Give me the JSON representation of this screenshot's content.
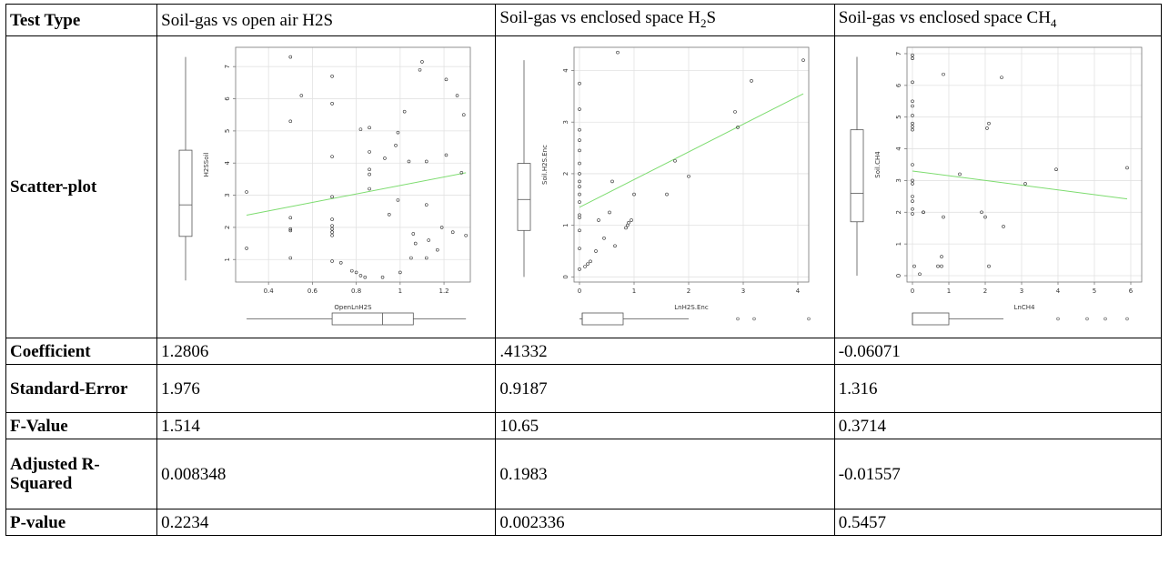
{
  "table": {
    "header": {
      "label": "Test Type",
      "col1": "Soil-gas vs open air H2S",
      "col2_pre": "Soil-gas vs enclosed space H",
      "col2_sub": "2",
      "col2_post": "S",
      "col3_pre": "Soil-gas vs enclosed space CH",
      "col3_sub": "4"
    },
    "rows": {
      "scatter_label": "Scatter-plot",
      "coefficient": {
        "label": "Coefficient",
        "values": [
          "1.2806",
          ".41332",
          "-0.06071"
        ]
      },
      "std_error": {
        "label": "Standard-Error",
        "values": [
          "1.976",
          "0.9187",
          "1.316"
        ]
      },
      "f_value": {
        "label": "F-Value",
        "values": [
          "1.514",
          "10.65",
          "0.3714"
        ]
      },
      "adj_r2": {
        "label": "Adjusted R-Squared",
        "values": [
          "0.008348",
          "0.1983",
          "-0.01557"
        ]
      },
      "p_value": {
        "label": "P-value",
        "values": [
          "0.2234",
          "0.002336",
          "0.5457"
        ]
      }
    }
  },
  "chart_data": [
    {
      "type": "scatter",
      "xlabel": "OpenLnH2S",
      "ylabel": "H2SSoil",
      "xlim": [
        0.25,
        1.32
      ],
      "ylim": [
        0.3,
        7.6
      ],
      "xticks": [
        0.4,
        0.6,
        0.8,
        1.0,
        1.2
      ],
      "yticks": [
        1,
        2,
        3,
        4,
        5,
        6,
        7
      ],
      "grid": true,
      "fit_line": {
        "x": [
          0.3,
          1.3
        ],
        "y": [
          2.38,
          3.7
        ],
        "color": "#7ddc6f"
      },
      "xbox": {
        "min": 0.3,
        "q1": 0.69,
        "median": 0.92,
        "q3": 1.06,
        "max": 1.3
      },
      "ybox": {
        "min": 0.35,
        "q1": 1.72,
        "median": 2.7,
        "q3": 4.4,
        "max": 7.3
      },
      "points": [
        [
          0.3,
          3.1
        ],
        [
          0.3,
          1.35
        ],
        [
          0.5,
          7.3
        ],
        [
          0.5,
          5.3
        ],
        [
          0.5,
          2.3
        ],
        [
          0.5,
          1.95
        ],
        [
          0.5,
          1.9
        ],
        [
          0.5,
          1.05
        ],
        [
          0.55,
          6.1
        ],
        [
          0.69,
          6.7
        ],
        [
          0.69,
          5.85
        ],
        [
          0.69,
          4.2
        ],
        [
          0.69,
          2.95
        ],
        [
          0.69,
          2.25
        ],
        [
          0.69,
          2.05
        ],
        [
          0.69,
          1.95
        ],
        [
          0.69,
          1.85
        ],
        [
          0.69,
          1.75
        ],
        [
          0.69,
          0.95
        ],
        [
          0.73,
          0.9
        ],
        [
          0.78,
          0.65
        ],
        [
          0.8,
          0.6
        ],
        [
          0.82,
          5.05
        ],
        [
          0.82,
          0.5
        ],
        [
          0.84,
          0.45
        ],
        [
          0.86,
          5.1
        ],
        [
          0.86,
          4.35
        ],
        [
          0.86,
          3.8
        ],
        [
          0.86,
          3.65
        ],
        [
          0.86,
          3.2
        ],
        [
          0.92,
          0.45
        ],
        [
          0.93,
          4.15
        ],
        [
          0.95,
          2.4
        ],
        [
          0.98,
          4.55
        ],
        [
          0.99,
          4.95
        ],
        [
          0.99,
          2.85
        ],
        [
          1.0,
          0.6
        ],
        [
          1.02,
          5.6
        ],
        [
          1.04,
          4.05
        ],
        [
          1.05,
          1.05
        ],
        [
          1.06,
          1.8
        ],
        [
          1.07,
          1.5
        ],
        [
          1.09,
          6.9
        ],
        [
          1.1,
          7.15
        ],
        [
          1.12,
          4.05
        ],
        [
          1.12,
          2.7
        ],
        [
          1.12,
          1.05
        ],
        [
          1.13,
          1.6
        ],
        [
          1.17,
          1.3
        ],
        [
          1.19,
          2.0
        ],
        [
          1.21,
          4.25
        ],
        [
          1.21,
          6.6
        ],
        [
          1.24,
          1.85
        ],
        [
          1.26,
          6.1
        ],
        [
          1.28,
          3.7
        ],
        [
          1.29,
          5.5
        ],
        [
          1.3,
          1.75
        ]
      ]
    },
    {
      "type": "scatter",
      "xlabel": "LnH2S.Enc",
      "ylabel": "Soil.H2S.Enc",
      "xlim": [
        -0.1,
        4.2
      ],
      "ylim": [
        -0.1,
        4.45
      ],
      "xticks": [
        0,
        1,
        2,
        3,
        4
      ],
      "yticks": [
        0,
        1,
        2,
        3,
        4
      ],
      "grid": true,
      "fit_line": {
        "x": [
          0,
          4.1
        ],
        "y": [
          1.35,
          3.55
        ],
        "color": "#7ddc6f"
      },
      "xbox": {
        "min": 0,
        "q1": 0.05,
        "median": 0.05,
        "q3": 0.8,
        "max": 2.0
      },
      "xbox_outliers": [
        2.9,
        3.2,
        4.2
      ],
      "ybox": {
        "min": 0,
        "q1": 0.9,
        "median": 1.5,
        "q3": 2.2,
        "max": 4.2
      },
      "points": [
        [
          0,
          3.75
        ],
        [
          0,
          3.25
        ],
        [
          0,
          2.85
        ],
        [
          0,
          2.65
        ],
        [
          0,
          2.45
        ],
        [
          0,
          2.2
        ],
        [
          0,
          2.0
        ],
        [
          0,
          1.85
        ],
        [
          0,
          1.75
        ],
        [
          0,
          1.6
        ],
        [
          0,
          1.45
        ],
        [
          0,
          1.2
        ],
        [
          0,
          1.15
        ],
        [
          0,
          0.9
        ],
        [
          0,
          0.55
        ],
        [
          0,
          0.15
        ],
        [
          0.1,
          0.2
        ],
        [
          0.15,
          0.25
        ],
        [
          0.2,
          0.3
        ],
        [
          0.3,
          0.5
        ],
        [
          0.35,
          1.1
        ],
        [
          0.45,
          0.75
        ],
        [
          0.55,
          1.25
        ],
        [
          0.6,
          1.85
        ],
        [
          0.65,
          0.6
        ],
        [
          0.7,
          4.35
        ],
        [
          0.85,
          0.95
        ],
        [
          0.88,
          1.0
        ],
        [
          0.9,
          1.05
        ],
        [
          0.95,
          1.1
        ],
        [
          1.0,
          1.6
        ],
        [
          1.6,
          1.6
        ],
        [
          1.75,
          2.25
        ],
        [
          2.0,
          1.95
        ],
        [
          2.85,
          3.2
        ],
        [
          2.9,
          2.9
        ],
        [
          3.15,
          3.8
        ],
        [
          4.1,
          4.2
        ]
      ]
    },
    {
      "type": "scatter",
      "xlabel": "LnCH4",
      "ylabel": "Soil.CH4",
      "xlim": [
        -0.15,
        6.3
      ],
      "ylim": [
        -0.2,
        7.2
      ],
      "xticks": [
        0,
        1,
        2,
        3,
        4,
        5,
        6
      ],
      "yticks": [
        0,
        1,
        2,
        3,
        4,
        5,
        6,
        7
      ],
      "grid": true,
      "fit_line": {
        "x": [
          0,
          5.9
        ],
        "y": [
          3.3,
          2.42
        ],
        "color": "#7ddc6f"
      },
      "xbox": {
        "min": 0,
        "q1": 0,
        "median": 0,
        "q3": 1.0,
        "max": 2.5
      },
      "xbox_outliers": [
        4.0,
        4.8,
        5.3,
        5.9
      ],
      "ybox": {
        "min": 0,
        "q1": 1.7,
        "median": 2.6,
        "q3": 4.6,
        "max": 6.9
      },
      "points": [
        [
          0,
          6.95
        ],
        [
          0,
          6.85
        ],
        [
          0,
          6.1
        ],
        [
          0,
          5.5
        ],
        [
          0,
          5.35
        ],
        [
          0,
          5.05
        ],
        [
          0,
          4.8
        ],
        [
          0,
          4.7
        ],
        [
          0,
          4.6
        ],
        [
          0,
          3.5
        ],
        [
          0,
          3.0
        ],
        [
          0,
          2.9
        ],
        [
          0,
          2.5
        ],
        [
          0,
          2.35
        ],
        [
          0,
          2.1
        ],
        [
          0,
          1.95
        ],
        [
          0.05,
          0.3
        ],
        [
          0.2,
          0.05
        ],
        [
          0.3,
          2.0
        ],
        [
          0.3,
          2.0
        ],
        [
          0.7,
          0.3
        ],
        [
          0.8,
          0.3
        ],
        [
          0.8,
          0.6
        ],
        [
          0.85,
          1.85
        ],
        [
          0.85,
          6.35
        ],
        [
          1.3,
          3.2
        ],
        [
          1.9,
          2.0
        ],
        [
          2.0,
          1.85
        ],
        [
          2.05,
          4.65
        ],
        [
          2.1,
          4.8
        ],
        [
          2.1,
          0.3
        ],
        [
          2.45,
          6.25
        ],
        [
          2.5,
          1.55
        ],
        [
          3.1,
          2.9
        ],
        [
          3.95,
          3.35
        ],
        [
          5.9,
          3.4
        ]
      ]
    }
  ]
}
